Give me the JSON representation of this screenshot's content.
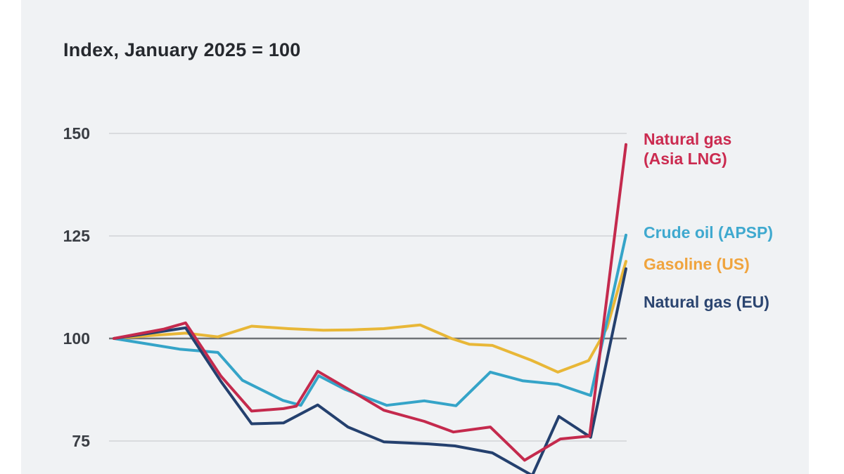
{
  "page": {
    "background": "#ffffff",
    "card_background": "#f0f2f4"
  },
  "title": "Index, January 2025 = 100",
  "chart_data": {
    "type": "line",
    "title": "Index, January 2025 = 100",
    "x_axis": {
      "note": "x tick labels are cropped out of the visible screenshot",
      "range_percent": [
        0,
        100
      ]
    },
    "y_axis": {
      "ticks": [
        150,
        125,
        100,
        75
      ],
      "baseline": 100,
      "visible_range": [
        66,
        155
      ]
    },
    "grid": {
      "light_color": "#d9dbde",
      "baseline_color": "#6f7377"
    },
    "series": [
      {
        "id": "gasoline_us",
        "name": "Gasoline (US)",
        "line_color": "#e8b737",
        "label_color": "#f0a43e",
        "points": [
          [
            0,
            100
          ],
          [
            7,
            100.7
          ],
          [
            14,
            101.3
          ],
          [
            20.3,
            100.4
          ],
          [
            26.9,
            103
          ],
          [
            34.1,
            102.4
          ],
          [
            40.9,
            102
          ],
          [
            46.4,
            102.1
          ],
          [
            52.7,
            102.4
          ],
          [
            59.8,
            103.3
          ],
          [
            65.9,
            100
          ],
          [
            69.4,
            98.6
          ],
          [
            73.9,
            98.3
          ],
          [
            81.5,
            94.7
          ],
          [
            86.7,
            91.8
          ],
          [
            92.7,
            94.6
          ],
          [
            96.3,
            102.6
          ],
          [
            100,
            118.8
          ]
        ]
      },
      {
        "id": "crude_oil_apsp",
        "name": "Crude oil (APSP)",
        "line_color": "#35a4c8",
        "label_color": "#3fa9cf",
        "points": [
          [
            0,
            100
          ],
          [
            12.8,
            97.4
          ],
          [
            20.3,
            96.6
          ],
          [
            25.1,
            89.8
          ],
          [
            33,
            84.9
          ],
          [
            36.5,
            83.7
          ],
          [
            40,
            90.9
          ],
          [
            45.1,
            87.6
          ],
          [
            53.3,
            83.7
          ],
          [
            60.6,
            84.8
          ],
          [
            66.8,
            83.6
          ],
          [
            73.5,
            91.8
          ],
          [
            79.8,
            89.7
          ],
          [
            86.7,
            88.8
          ],
          [
            93.1,
            86.1
          ],
          [
            100,
            125.2
          ]
        ]
      },
      {
        "id": "natural_gas_eu",
        "name": "Natural gas (EU)",
        "line_color": "#24406e",
        "label_color": "#2b4570",
        "points": [
          [
            0,
            100
          ],
          [
            9.8,
            101.8
          ],
          [
            14,
            102.6
          ],
          [
            20.9,
            89.5
          ],
          [
            26.9,
            79.2
          ],
          [
            33.1,
            79.4
          ],
          [
            39.8,
            83.8
          ],
          [
            45.7,
            78.4
          ],
          [
            52.7,
            74.8
          ],
          [
            61.4,
            74.3
          ],
          [
            66.6,
            73.8
          ],
          [
            73.9,
            72.1
          ],
          [
            77.6,
            69.5
          ],
          [
            81.7,
            66.6
          ],
          [
            86.9,
            81
          ],
          [
            93.1,
            75.9
          ],
          [
            100,
            117
          ]
        ]
      },
      {
        "id": "natural_gas_asia_lng",
        "name": "Natural gas (Asia LNG)",
        "line_color": "#c42a4d",
        "label_color": "#cb2b50",
        "points": [
          [
            0,
            100
          ],
          [
            9.8,
            102.3
          ],
          [
            14,
            103.8
          ],
          [
            20.9,
            90.8
          ],
          [
            26.9,
            82.3
          ],
          [
            33.1,
            82.9
          ],
          [
            35.6,
            83.5
          ],
          [
            39.8,
            92
          ],
          [
            45.7,
            87.7
          ],
          [
            52.7,
            82.5
          ],
          [
            60.6,
            79.8
          ],
          [
            66.3,
            77.2
          ],
          [
            73.5,
            78.4
          ],
          [
            80.2,
            70.3
          ],
          [
            87.2,
            75.5
          ],
          [
            92.9,
            76.2
          ],
          [
            100,
            147.3
          ]
        ]
      }
    ],
    "legend_position": "right of line endpoints"
  },
  "legend": {
    "items": [
      {
        "series_id": "natural_gas_asia_lng",
        "text": "Natural gas\n(Asia LNG)",
        "color": "#cb2b50"
      },
      {
        "series_id": "crude_oil_apsp",
        "text": "Crude oil (APSP)",
        "color": "#3fa9cf"
      },
      {
        "series_id": "gasoline_us",
        "text": "Gasoline (US)",
        "color": "#f0a43e"
      },
      {
        "series_id": "natural_gas_eu",
        "text": "Natural gas (EU)",
        "color": "#2b4570"
      }
    ]
  }
}
